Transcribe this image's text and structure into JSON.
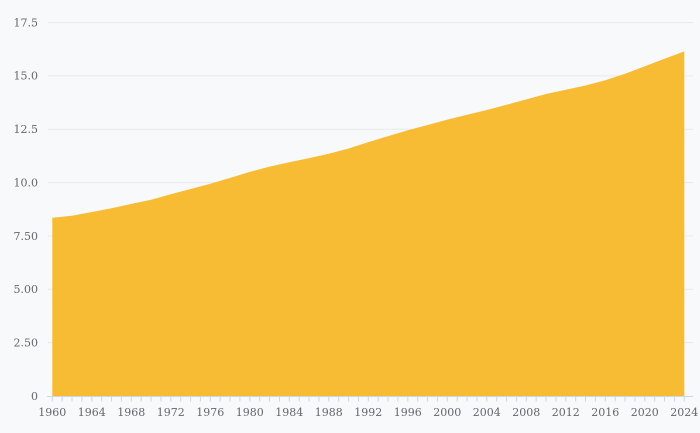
{
  "chart_data": {
    "type": "area",
    "title": "",
    "subtitle": "",
    "xlabel": "",
    "ylabel": "",
    "legend": "none",
    "grid": "horizontal",
    "xlim": [
      1960,
      2024
    ],
    "ylim": [
      0,
      17.5
    ],
    "x": [
      1960,
      1962,
      1964,
      1966,
      1968,
      1970,
      1972,
      1974,
      1976,
      1978,
      1980,
      1982,
      1984,
      1986,
      1988,
      1990,
      1992,
      1994,
      1996,
      1998,
      2000,
      2002,
      2004,
      2006,
      2008,
      2010,
      2012,
      2014,
      2016,
      2018,
      2020,
      2022,
      2024
    ],
    "values": [
      8.35,
      8.45,
      8.62,
      8.8,
      9.0,
      9.2,
      9.45,
      9.7,
      9.95,
      10.22,
      10.5,
      10.75,
      10.95,
      11.15,
      11.35,
      11.6,
      11.9,
      12.18,
      12.45,
      12.7,
      12.95,
      13.18,
      13.4,
      13.65,
      13.9,
      14.15,
      14.35,
      14.55,
      14.8,
      15.1,
      15.45,
      15.8,
      16.15
    ],
    "y_ticks": [
      {
        "value": 17.5,
        "label": "17.5"
      },
      {
        "value": 15.0,
        "label": "15.0"
      },
      {
        "value": 12.5,
        "label": "12.5"
      },
      {
        "value": 10.0,
        "label": "10.0"
      },
      {
        "value": 7.5,
        "label": "7.50"
      },
      {
        "value": 5.0,
        "label": "5.00"
      },
      {
        "value": 2.5,
        "label": "2.50"
      },
      {
        "value": 0,
        "label": "0"
      }
    ],
    "x_tick_label_years": [
      1960,
      1964,
      1968,
      1972,
      1976,
      1980,
      1984,
      1988,
      1992,
      1996,
      2000,
      2004,
      2008,
      2012,
      2016,
      2020,
      2024
    ],
    "x_minor_tick_interval_years": 1,
    "colors": {
      "area_fill": "#f8bc34",
      "background": "#f8f9fa",
      "gridline": "#e8e9eb",
      "axis_line": "#ccd6eb",
      "tick_mark": "#ccd6eb",
      "label_text": "#63676c"
    }
  }
}
